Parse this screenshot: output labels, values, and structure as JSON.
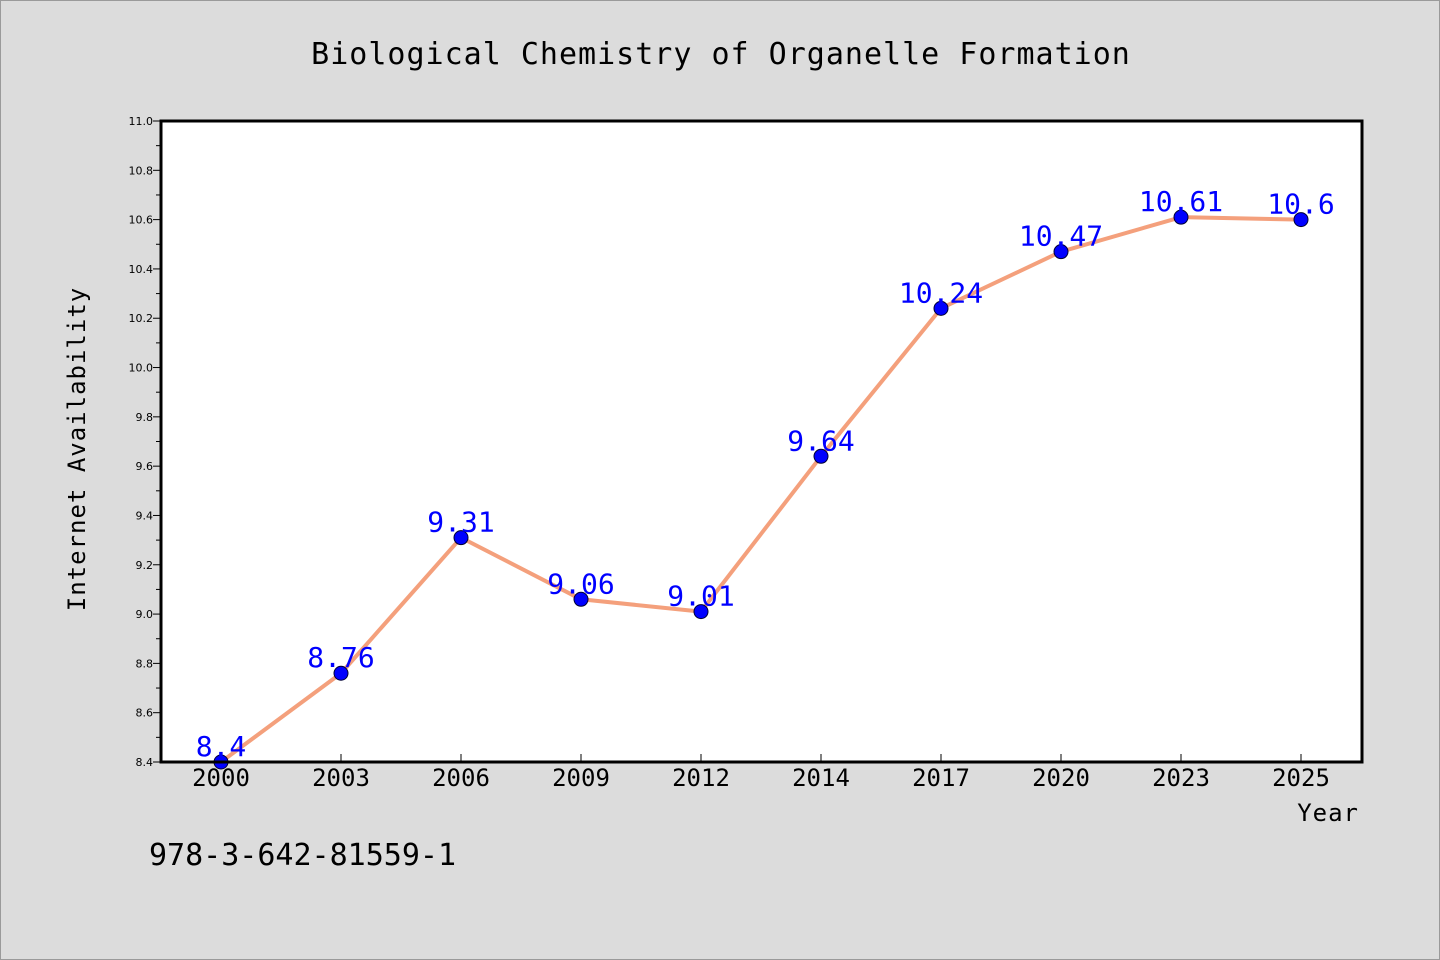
{
  "chart_data": {
    "type": "line",
    "title": "Biological Chemistry of Organelle Formation",
    "xlabel": "Year",
    "ylabel": "Internet Availability",
    "categories": [
      "2000",
      "2003",
      "2006",
      "2009",
      "2012",
      "2014",
      "2017",
      "2020",
      "2023",
      "2025"
    ],
    "series": [
      {
        "values": [
          8.4,
          8.76,
          9.31,
          9.06,
          9.01,
          9.64,
          10.24,
          10.47,
          10.61,
          10.6
        ],
        "labels": [
          "8.4",
          "8.76",
          "9.31",
          "9.06",
          "9.01",
          "9.64",
          "10.24",
          "10.47",
          "10.61",
          "10.6"
        ],
        "line_color": "#f4a07c",
        "marker_color": "#0000ff"
      }
    ],
    "ylim": [
      8.4,
      11.0
    ],
    "yticks": [
      "8.4",
      "8.6",
      "8.8",
      "9.0",
      "9.2",
      "9.4",
      "9.6",
      "9.8",
      "10.0",
      "10.2",
      "10.4",
      "10.6",
      "10.8",
      "11.0"
    ],
    "grid": false,
    "legend": "none"
  },
  "footer": {
    "isbn": "978-3-642-81559-1"
  },
  "colors": {
    "background": "#dcdcdc",
    "plot_background": "#ffffff",
    "label_color": "#0000ff"
  }
}
